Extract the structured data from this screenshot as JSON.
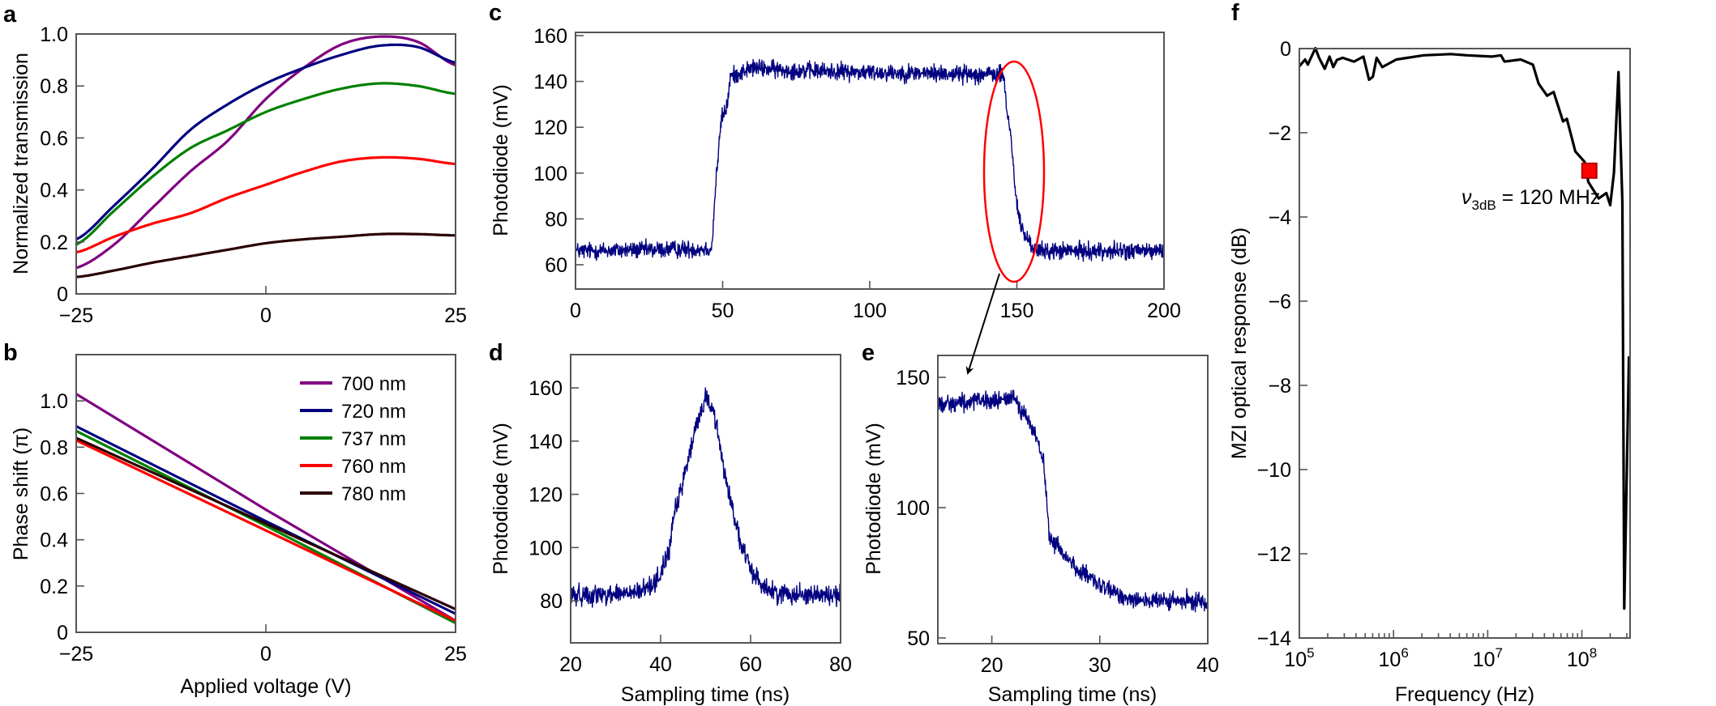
{
  "figure": {
    "panel_labels": {
      "a": "a",
      "b": "b",
      "c": "c",
      "d": "d",
      "e": "e",
      "f": "f"
    }
  },
  "chart_data": [
    {
      "id": "a",
      "type": "line",
      "title": "",
      "xlabel": "",
      "ylabel": "Normalized transmission",
      "xlim": [
        -25,
        25
      ],
      "ylim": [
        0,
        1.0
      ],
      "grid": false,
      "xticks": [
        -25,
        0,
        25
      ],
      "xtick_labels": [
        "−25",
        "0",
        "25"
      ],
      "yticks": [
        0,
        0.2,
        0.4,
        0.6,
        0.8,
        1.0
      ],
      "ytick_labels": [
        "0",
        "0.2",
        "0.4",
        "0.6",
        "0.8",
        "1.0"
      ],
      "x": [
        -25,
        -20,
        -15,
        -10,
        -5,
        0,
        5,
        10,
        15,
        20,
        25
      ],
      "series": [
        {
          "name": "700 nm",
          "color": "#800080",
          "values": [
            0.1,
            0.19,
            0.33,
            0.47,
            0.59,
            0.75,
            0.87,
            0.96,
            0.99,
            0.97,
            0.88
          ]
        },
        {
          "name": "720 nm",
          "color": "#000080",
          "values": [
            0.21,
            0.34,
            0.48,
            0.63,
            0.73,
            0.81,
            0.87,
            0.92,
            0.955,
            0.95,
            0.89
          ]
        },
        {
          "name": "737 nm",
          "color": "#008000",
          "values": [
            0.19,
            0.32,
            0.45,
            0.56,
            0.63,
            0.7,
            0.75,
            0.79,
            0.81,
            0.8,
            0.77
          ]
        },
        {
          "name": "760 nm",
          "color": "#ff0000",
          "values": [
            0.16,
            0.22,
            0.27,
            0.31,
            0.37,
            0.42,
            0.47,
            0.51,
            0.525,
            0.52,
            0.5
          ]
        },
        {
          "name": "780 nm",
          "color": "#2a0000",
          "values": [
            0.065,
            0.09,
            0.12,
            0.145,
            0.17,
            0.195,
            0.21,
            0.22,
            0.23,
            0.23,
            0.225
          ]
        }
      ]
    },
    {
      "id": "b",
      "type": "line",
      "title": "",
      "xlabel": "Applied voltage (V)",
      "ylabel": "Phase shift (π)",
      "xlim": [
        -25,
        25
      ],
      "ylim": [
        0,
        1.2
      ],
      "grid": false,
      "legend_placement": "top-right",
      "xticks": [
        -25,
        0,
        25
      ],
      "xtick_labels": [
        "−25",
        "0",
        "25"
      ],
      "yticks": [
        0,
        0.2,
        0.4,
        0.6,
        0.8,
        1.0
      ],
      "ytick_labels": [
        "0",
        "0.2",
        "0.4",
        "0.6",
        "0.8",
        "1.0"
      ],
      "x": [
        -25,
        0,
        25
      ],
      "series": [
        {
          "name": "700 nm",
          "color": "#800080",
          "values": [
            1.03,
            0.53,
            0.05
          ]
        },
        {
          "name": "720 nm",
          "color": "#000080",
          "values": [
            0.89,
            0.48,
            0.08
          ]
        },
        {
          "name": "737 nm",
          "color": "#008000",
          "values": [
            0.87,
            0.46,
            0.04
          ]
        },
        {
          "name": "760 nm",
          "color": "#ff0000",
          "values": [
            0.83,
            0.44,
            0.05
          ]
        },
        {
          "name": "780 nm",
          "color": "#2a0000",
          "values": [
            0.84,
            0.47,
            0.1
          ]
        }
      ]
    },
    {
      "id": "c",
      "type": "line",
      "title": "",
      "xlabel": "",
      "ylabel": "Photodiode (mV)",
      "xlim": [
        0,
        200
      ],
      "ylim": [
        49.4,
        161.4
      ],
      "grid": false,
      "xticks": [
        0,
        50,
        100,
        150,
        200
      ],
      "xtick_labels": [
        "0",
        "50",
        "100",
        "150",
        "200"
      ],
      "yticks": [
        60,
        80,
        100,
        120,
        140,
        160
      ],
      "ytick_labels": [
        "60",
        "80",
        "100",
        "120",
        "140",
        "160"
      ],
      "series": [
        {
          "name": "photodiode trace",
          "color": "#000080",
          "noise_mV": 3.5,
          "x": [
            0,
            46.3,
            47.7,
            49.6,
            51.5,
            52.6,
            60,
            70,
            100,
            145.5,
            146.5,
            148,
            149,
            150,
            151.5,
            154,
            157,
            200
          ],
          "values": [
            66,
            67,
            96,
            124,
            129,
            142,
            146,
            145,
            144,
            143,
            128,
            116,
            100,
            86,
            76,
            70,
            66,
            66
          ]
        }
      ],
      "annotation": "ellipse highlighting falling edge near 150, arrow to panel e"
    },
    {
      "id": "d",
      "type": "line",
      "title": "",
      "xlabel": "Sampling time (ns)",
      "ylabel": "Photodiode (mV)",
      "xlim": [
        20,
        80
      ],
      "ylim": [
        64.2,
        172.5
      ],
      "grid": false,
      "xticks": [
        20,
        40,
        60,
        80
      ],
      "xtick_labels": [
        "20",
        "40",
        "60",
        "80"
      ],
      "yticks": [
        80,
        100,
        120,
        140,
        160
      ],
      "ytick_labels": [
        "80",
        "100",
        "120",
        "140",
        "160"
      ],
      "series": [
        {
          "name": "photodiode trace",
          "color": "#000080",
          "noise_mV": 3.5,
          "x": [
            20,
            35,
            38,
            40,
            42,
            43,
            44,
            46,
            48,
            50,
            52,
            54,
            57,
            58,
            60,
            62,
            65,
            80
          ],
          "values": [
            82,
            83,
            86,
            90,
            100,
            112,
            118,
            132,
            146,
            157,
            150,
            130,
            107,
            100,
            92,
            87,
            83,
            82
          ]
        }
      ]
    },
    {
      "id": "e",
      "type": "line",
      "title": "",
      "xlabel": "Sampling time (ns)",
      "ylabel": "Photodiode (mV)",
      "xlim": [
        15,
        40
      ],
      "ylim": [
        47.8,
        158.4
      ],
      "grid": false,
      "xticks": [
        20,
        30,
        40
      ],
      "xtick_labels": [
        "20",
        "30",
        "40"
      ],
      "yticks": [
        50,
        100,
        150
      ],
      "ytick_labels": [
        "50",
        "100",
        "150"
      ],
      "series": [
        {
          "name": "photodiode trace",
          "color": "#000080",
          "noise_mV": 3.2,
          "x": [
            15,
            21,
            22,
            23,
            24,
            24.8,
            25.1,
            25.3,
            26.5,
            28,
            30,
            32,
            35,
            40
          ],
          "values": [
            140,
            141,
            143,
            136,
            128,
            118,
            100,
            89,
            83,
            76,
            70,
            66,
            64,
            64
          ]
        }
      ]
    },
    {
      "id": "f",
      "type": "line",
      "title": "",
      "xlabel": "Frequency (Hz)",
      "ylabel": "MZI optical response (dB)",
      "xscale": "log",
      "xlim": [
        100000,
        325000000
      ],
      "ylim": [
        -14,
        0
      ],
      "grid": false,
      "xticks": [
        100000,
        1000000,
        10000000,
        100000000
      ],
      "xtick_labels": [
        {
          "base": "10",
          "exp": "5"
        },
        {
          "base": "10",
          "exp": "6"
        },
        {
          "base": "10",
          "exp": "7"
        },
        {
          "base": "10",
          "exp": "8"
        }
      ],
      "yticks": [
        0,
        -2,
        -4,
        -6,
        -8,
        -10,
        -12,
        -14
      ],
      "ytick_labels": [
        "0",
        "−2",
        "−4",
        "−6",
        "−8",
        "−10",
        "−12",
        "−14"
      ],
      "series": [
        {
          "name": "MZI response",
          "color": "#000000",
          "x": [
            100000.0,
            115000.0,
            123000.0,
            148000.0,
            162000.0,
            186000.0,
            209000.0,
            229000.0,
            251000.0,
            288000.0,
            380000.0,
            479000.0,
            550000.0,
            603000.0,
            661000.0,
            759000.0,
            1070000.0,
            2090000.0,
            4070000.0,
            6030000.0,
            11000000.0,
            13800000.0,
            15100000.0,
            22400000.0,
            30200000.0,
            34700000.0,
            42700000.0,
            50100000.0,
            63100000.0,
            69200000.0,
            85100000.0,
            107000000.0,
            117000000.0,
            151000000.0,
            182000000.0,
            200000000.0,
            219000000.0,
            245000000.0,
            269000000.0,
            282000000.0,
            316000000.0
          ],
          "values": [
            -0.42,
            -0.26,
            -0.38,
            0.01,
            -0.22,
            -0.48,
            -0.19,
            -0.44,
            -0.27,
            -0.22,
            -0.31,
            -0.19,
            -0.74,
            -0.67,
            -0.22,
            -0.44,
            -0.26,
            -0.16,
            -0.13,
            -0.16,
            -0.19,
            -0.16,
            -0.31,
            -0.26,
            -0.38,
            -0.83,
            -1.12,
            -1.03,
            -1.73,
            -1.67,
            -2.44,
            -2.69,
            -3.17,
            -3.56,
            -3.43,
            -3.72,
            -2.95,
            -0.56,
            -3.65,
            -13.3,
            -7.31
          ]
        }
      ],
      "marker": {
        "x": 120000000,
        "y": -2.9,
        "color": "#ff0000"
      },
      "annotation": {
        "symbol": "ν",
        "subscript": "3dB",
        "text": " = 120 MHz"
      }
    }
  ]
}
